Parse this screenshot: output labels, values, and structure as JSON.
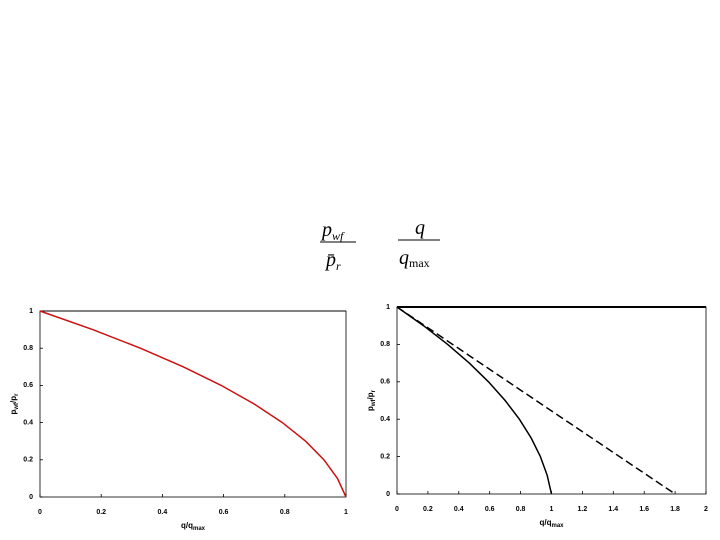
{
  "formula": {
    "fractions": [
      {
        "numerator": [
          "p",
          "wf"
        ],
        "denominator": [
          "p̄",
          "r"
        ]
      },
      {
        "numerator": [
          "q"
        ],
        "denominator": [
          "q",
          "max"
        ]
      }
    ]
  },
  "chart_data": [
    {
      "type": "line",
      "xlabel": [
        "q/q",
        "max"
      ],
      "ylabel": [
        "p",
        "wf",
        "/p",
        "r"
      ],
      "xlim": [
        0,
        1
      ],
      "ylim": [
        0,
        1
      ],
      "xticks": [
        0,
        0.2,
        0.4,
        0.6,
        0.8,
        1
      ],
      "yticks": [
        0,
        0.2,
        0.4,
        0.6,
        0.8,
        1
      ],
      "series": [
        {
          "color": "#cc1111",
          "style": "solid",
          "x": [
            0,
            0.172,
            0.328,
            0.468,
            0.592,
            0.7,
            0.792,
            0.868,
            0.928,
            0.972,
            1
          ],
          "values": [
            1,
            0.9,
            0.8,
            0.7,
            0.6,
            0.5,
            0.4,
            0.3,
            0.2,
            0.1,
            0
          ]
        }
      ]
    },
    {
      "type": "line",
      "xlabel": [
        "q/q",
        "max"
      ],
      "ylabel": [
        "p",
        "wf",
        "/p",
        "r"
      ],
      "xlim": [
        0,
        2
      ],
      "ylim": [
        0,
        1
      ],
      "xticks": [
        0,
        0.2,
        0.4,
        0.6,
        0.8,
        1,
        1.2,
        1.4,
        1.6,
        1.8,
        2
      ],
      "yticks": [
        0,
        0.2,
        0.4,
        0.6,
        0.8,
        1
      ],
      "series": [
        {
          "color": "#000000",
          "style": "solid",
          "x": [
            0,
            0.172,
            0.328,
            0.468,
            0.592,
            0.7,
            0.792,
            0.868,
            0.928,
            0.972,
            1
          ],
          "values": [
            1,
            0.9,
            0.8,
            0.7,
            0.6,
            0.5,
            0.4,
            0.3,
            0.2,
            0.1,
            0
          ]
        },
        {
          "color": "#000000",
          "style": "dashed",
          "x": [
            0,
            1.8
          ],
          "values": [
            1,
            0
          ]
        }
      ]
    }
  ]
}
